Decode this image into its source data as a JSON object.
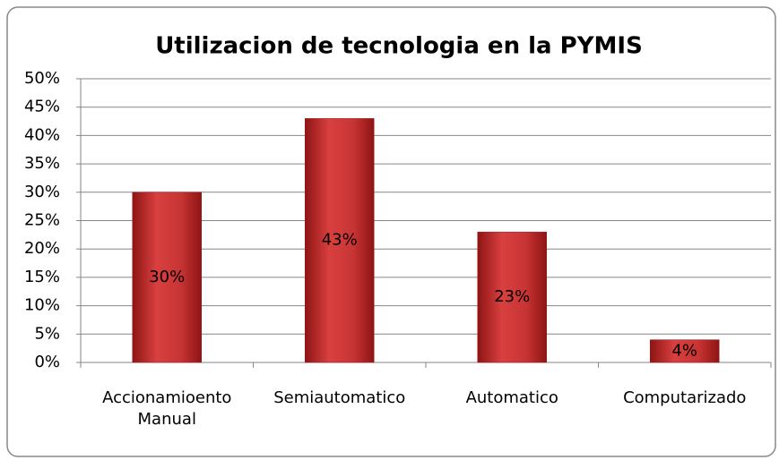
{
  "chart_data": {
    "type": "bar",
    "title": "Utilizacion de tecnologia en la PYMIS",
    "categories": [
      "Accionamioento Manual",
      "Semiautomatico",
      "Automatico",
      "Computarizado"
    ],
    "values": [
      30,
      43,
      23,
      4
    ],
    "value_labels": [
      "30%",
      "43%",
      "23%",
      "4%"
    ],
    "color": "#c0282a",
    "ylim": [
      0,
      50
    ],
    "yticks": [
      {
        "value": 0,
        "label": "0%"
      },
      {
        "value": 5,
        "label": "5%"
      },
      {
        "value": 10,
        "label": "10%"
      },
      {
        "value": 15,
        "label": "15%"
      },
      {
        "value": 20,
        "label": "20%"
      },
      {
        "value": 25,
        "label": "25%"
      },
      {
        "value": 30,
        "label": "30%"
      },
      {
        "value": 35,
        "label": "35%"
      },
      {
        "value": 40,
        "label": "40%"
      },
      {
        "value": 45,
        "label": "45%"
      },
      {
        "value": 50,
        "label": "50%"
      }
    ],
    "grid": true
  }
}
